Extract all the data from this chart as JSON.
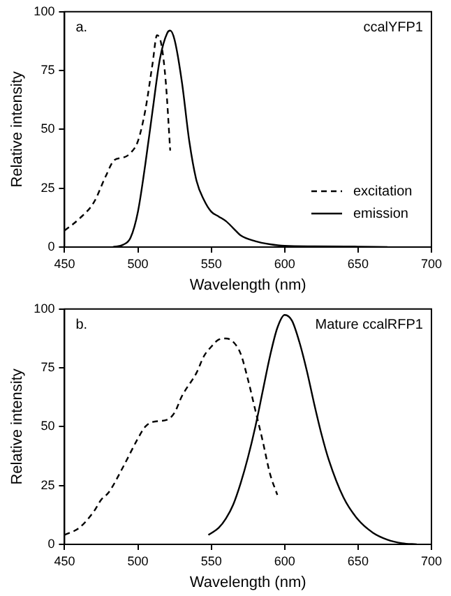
{
  "chart_data": [
    {
      "type": "line",
      "xlabel": "Wavelength (nm)",
      "ylabel": "Relative intensity",
      "annotations": [
        "a.",
        "ccalYFP1"
      ],
      "xlim": [
        450,
        700
      ],
      "ylim": [
        0,
        100
      ],
      "xticks": [
        450,
        500,
        550,
        600,
        650,
        700
      ],
      "yticks": [
        0,
        25,
        50,
        75,
        100
      ],
      "legend": "bottom right",
      "marker": "none",
      "series": [
        {
          "name": "excitation",
          "color": "#000000",
          "line_style": "dashed",
          "x": [
            450,
            460,
            470,
            478,
            484,
            490,
            495,
            500,
            505,
            510,
            513,
            516,
            519,
            522
          ],
          "values": [
            7,
            12,
            19,
            30,
            37,
            38,
            40,
            45,
            58,
            78,
            90,
            86,
            70,
            41
          ]
        },
        {
          "name": "emission",
          "color": "#000000",
          "line_style": "solid",
          "x": [
            483,
            490,
            495,
            500,
            505,
            510,
            515,
            520,
            522,
            525,
            530,
            535,
            540,
            545,
            550,
            555,
            560,
            565,
            570,
            580,
            590,
            600,
            620,
            650,
            670
          ],
          "values": [
            0,
            1,
            4,
            15,
            35,
            58,
            80,
            91,
            92,
            88,
            70,
            45,
            28,
            20,
            15,
            13,
            11,
            8,
            5,
            2.5,
            1.2,
            0.5,
            0.3,
            0.2,
            0
          ]
        }
      ]
    },
    {
      "type": "line",
      "xlabel": "Wavelength (nm)",
      "ylabel": "Relative intensity",
      "annotations": [
        "b.",
        "Mature ccalRFP1"
      ],
      "xlim": [
        450,
        700
      ],
      "ylim": [
        0,
        100
      ],
      "xticks": [
        450,
        500,
        550,
        600,
        650,
        700
      ],
      "yticks": [
        0,
        25,
        50,
        75,
        100
      ],
      "marker": "none",
      "series": [
        {
          "color": "#000000",
          "line_style": "dashed",
          "x": [
            450,
            460,
            470,
            475,
            480,
            490,
            500,
            505,
            510,
            520,
            525,
            530,
            540,
            545,
            550,
            555,
            560,
            565,
            570,
            575,
            580,
            585,
            590,
            595
          ],
          "values": [
            4,
            7,
            14,
            19,
            22,
            33,
            45,
            50,
            52,
            53,
            56,
            63,
            73,
            80,
            84,
            87,
            87.5,
            86,
            81,
            70,
            57,
            44,
            30,
            21
          ]
        },
        {
          "color": "#000000",
          "line_style": "solid",
          "x": [
            548,
            555,
            560,
            565,
            570,
            575,
            580,
            585,
            590,
            595,
            600,
            605,
            610,
            615,
            620,
            625,
            630,
            640,
            650,
            660,
            670,
            680,
            690
          ],
          "values": [
            4,
            7,
            11,
            17,
            26,
            37,
            50,
            65,
            80,
            92,
            97.5,
            95,
            86,
            74,
            60,
            47,
            36,
            20,
            10.5,
            5,
            2,
            0.5,
            0
          ]
        }
      ]
    }
  ]
}
